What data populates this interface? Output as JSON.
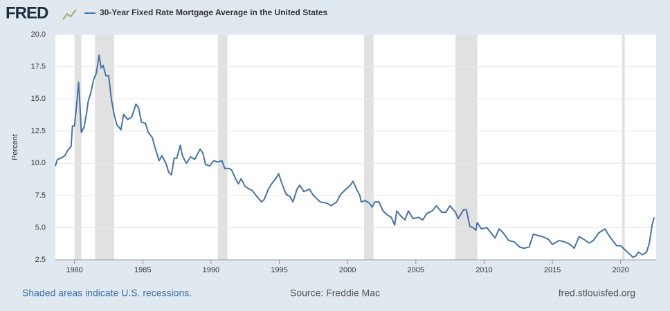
{
  "chart_data": {
    "type": "line",
    "logo": "FRED",
    "y_label": "Percent",
    "footer_note": "Shaded areas indicate U.S. recessions.",
    "source": "Source: Freddie Mac",
    "site": "fred.stlouisfed.org",
    "xlim": [
      1978.6,
      2022.6
    ],
    "xticks": [
      1980,
      1985,
      1990,
      1995,
      2000,
      2005,
      2010,
      2015,
      2020
    ],
    "ylim": [
      2.5,
      20
    ],
    "yticks": [
      2.5,
      {
        "value": 5,
        "label": "5.0"
      },
      7.5,
      {
        "value": 10,
        "label": "10.0"
      },
      12.5,
      {
        "value": 15,
        "label": "15.0"
      },
      17.5,
      {
        "value": 20,
        "label": "20.0"
      }
    ],
    "grid": true,
    "recessions": [
      [
        1980.0,
        1980.5
      ],
      [
        1981.5,
        1982.9
      ],
      [
        1990.5,
        1991.2
      ],
      [
        2001.2,
        2001.9
      ],
      [
        2007.9,
        2009.5
      ],
      [
        2020.1,
        2020.3
      ]
    ],
    "recession_color": "#e1e1e1",
    "x": [
      1978.6,
      1978.75,
      1979.0,
      1979.3,
      1979.5,
      1979.75,
      1979.85,
      1980.0,
      1980.2,
      1980.3,
      1980.4,
      1980.5,
      1980.7,
      1980.9,
      1981.0,
      1981.2,
      1981.4,
      1981.6,
      1981.8,
      1981.95,
      1982.1,
      1982.3,
      1982.5,
      1982.7,
      1982.9,
      1983.1,
      1983.4,
      1983.6,
      1983.9,
      1984.2,
      1984.5,
      1984.7,
      1984.9,
      1985.2,
      1985.4,
      1985.7,
      1985.9,
      1986.2,
      1986.4,
      1986.7,
      1986.9,
      1987.1,
      1987.3,
      1987.5,
      1987.75,
      1987.9,
      1988.2,
      1988.5,
      1988.8,
      1989.2,
      1989.4,
      1989.6,
      1989.9,
      1990.2,
      1990.5,
      1990.8,
      1991.0,
      1991.3,
      1991.5,
      1991.8,
      1992.0,
      1992.2,
      1992.5,
      1992.8,
      1993.0,
      1993.3,
      1993.7,
      1993.9,
      1994.2,
      1994.5,
      1994.8,
      1994.95,
      1995.2,
      1995.5,
      1995.8,
      1996.0,
      1996.3,
      1996.5,
      1996.8,
      1997.2,
      1997.5,
      1997.8,
      1998.0,
      1998.5,
      1998.8,
      1999.2,
      1999.5,
      1999.8,
      2000.2,
      2000.4,
      2000.7,
      2000.9,
      2001.0,
      2001.3,
      2001.6,
      2001.8,
      2002.0,
      2002.3,
      2002.6,
      2002.9,
      2003.2,
      2003.45,
      2003.6,
      2003.9,
      2004.2,
      2004.45,
      2004.8,
      2005.2,
      2005.5,
      2005.8,
      2006.2,
      2006.5,
      2006.9,
      2007.2,
      2007.5,
      2007.9,
      2008.1,
      2008.5,
      2008.7,
      2008.95,
      2009.2,
      2009.4,
      2009.5,
      2009.8,
      2010.2,
      2010.5,
      2010.8,
      2011.1,
      2011.4,
      2011.8,
      2012.2,
      2012.6,
      2012.9,
      2013.3,
      2013.6,
      2013.9,
      2014.3,
      2014.7,
      2015.0,
      2015.5,
      2015.9,
      2016.3,
      2016.6,
      2016.95,
      2017.3,
      2017.7,
      2018.0,
      2018.4,
      2018.85,
      2019.2,
      2019.7,
      2020.0,
      2020.3,
      2020.6,
      2020.9,
      2021.1,
      2021.3,
      2021.6,
      2021.9,
      2022.1,
      2022.3,
      2022.45
    ],
    "series": [
      {
        "name": "30-Year Fixed Rate Mortgage Average in the United States",
        "color": "#4572a7",
        "values": [
          9.8,
          10.3,
          10.4,
          10.6,
          11.0,
          11.3,
          12.9,
          12.9,
          15.0,
          16.3,
          14.5,
          12.4,
          12.8,
          14.0,
          14.8,
          15.5,
          16.5,
          17.0,
          18.4,
          17.4,
          17.6,
          16.8,
          16.8,
          15.0,
          13.8,
          13.0,
          12.6,
          13.8,
          13.4,
          13.6,
          14.6,
          14.3,
          13.2,
          13.1,
          12.4,
          12.0,
          11.2,
          10.2,
          10.6,
          10.0,
          9.3,
          9.1,
          10.4,
          10.4,
          11.4,
          10.6,
          10.0,
          10.5,
          10.3,
          11.1,
          10.8,
          9.9,
          9.8,
          10.2,
          10.1,
          10.2,
          9.6,
          9.6,
          9.5,
          8.8,
          8.4,
          8.8,
          8.2,
          8.0,
          7.9,
          7.5,
          7.0,
          7.2,
          8.0,
          8.5,
          8.9,
          9.2,
          8.4,
          7.6,
          7.4,
          7.0,
          8.0,
          8.3,
          7.8,
          8.0,
          7.5,
          7.2,
          7.0,
          6.9,
          6.7,
          7.0,
          7.6,
          7.9,
          8.3,
          8.6,
          7.9,
          7.5,
          7.0,
          7.1,
          6.9,
          6.6,
          7.0,
          7.0,
          6.3,
          6.0,
          5.8,
          5.2,
          6.3,
          5.9,
          5.6,
          6.3,
          5.7,
          5.8,
          5.6,
          6.1,
          6.3,
          6.7,
          6.2,
          6.2,
          6.7,
          6.2,
          5.7,
          6.4,
          6.4,
          5.1,
          5.0,
          4.8,
          5.4,
          4.9,
          5.0,
          4.6,
          4.2,
          4.9,
          4.6,
          4.0,
          3.9,
          3.5,
          3.4,
          3.5,
          4.5,
          4.4,
          4.3,
          4.1,
          3.7,
          4.0,
          3.9,
          3.7,
          3.4,
          4.3,
          4.1,
          3.8,
          4.0,
          4.6,
          4.9,
          4.3,
          3.6,
          3.6,
          3.3,
          3.0,
          2.7,
          2.8,
          3.1,
          2.9,
          3.1,
          3.8,
          5.2,
          5.8
        ]
      }
    ]
  }
}
